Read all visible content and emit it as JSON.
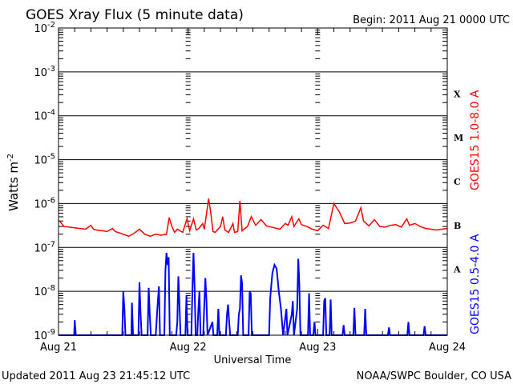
{
  "chart_data": {
    "type": "line",
    "title": "GOES Xray Flux (5 minute data)",
    "begin": "Begin:  2011 Aug 21 0000 UTC",
    "xlabel": "Universal Time",
    "ylabel": "Watts m",
    "ylabel_sup": "-2",
    "x_unit": "hours since 2011 Aug 21 0000 UTC",
    "xlim": [
      0,
      72
    ],
    "ylim": [
      1e-09,
      0.01
    ],
    "yscale": "log",
    "grid": true,
    "x_ticks": [
      {
        "value": 0,
        "label": "Aug 21"
      },
      {
        "value": 24,
        "label": "Aug 22"
      },
      {
        "value": 48,
        "label": "Aug 23"
      },
      {
        "value": 72,
        "label": "Aug 24"
      }
    ],
    "y_ticks": [
      {
        "exp": -2,
        "base": "10",
        "sup": "-2"
      },
      {
        "exp": -3,
        "base": "10",
        "sup": "-3"
      },
      {
        "exp": -4,
        "base": "10",
        "sup": "-4"
      },
      {
        "exp": -5,
        "base": "10",
        "sup": "-5"
      },
      {
        "exp": -6,
        "base": "10",
        "sup": "-6"
      },
      {
        "exp": -7,
        "base": "10",
        "sup": "-7"
      },
      {
        "exp": -8,
        "base": "10",
        "sup": "-8"
      },
      {
        "exp": -9,
        "base": "10",
        "sup": "-9"
      }
    ],
    "flare_classes": [
      {
        "label": "X",
        "exp": -3.5
      },
      {
        "label": "M",
        "exp": -4.5
      },
      {
        "label": "C",
        "exp": -5.5
      },
      {
        "label": "B",
        "exp": -6.5
      },
      {
        "label": "A",
        "exp": -7.5
      }
    ],
    "series": [
      {
        "name": "GOES15 1.0-8.0 A",
        "color": "#ff0000",
        "points": [
          [
            0,
            4.2e-07
          ],
          [
            0.5,
            3.6e-07
          ],
          [
            1,
            3e-07
          ],
          [
            2,
            2.9e-07
          ],
          [
            3,
            2.8e-07
          ],
          [
            4,
            2.7e-07
          ],
          [
            5,
            2.6e-07
          ],
          [
            6,
            3.2e-07
          ],
          [
            6.5,
            2.6e-07
          ],
          [
            7,
            2.5e-07
          ],
          [
            8,
            2.4e-07
          ],
          [
            9,
            2.3e-07
          ],
          [
            10,
            2.7e-07
          ],
          [
            10.5,
            2.3e-07
          ],
          [
            11,
            2.2e-07
          ],
          [
            12,
            2e-07
          ],
          [
            13,
            1.8e-07
          ],
          [
            14,
            2.1e-07
          ],
          [
            15,
            2.6e-07
          ],
          [
            16,
            2e-07
          ],
          [
            17,
            1.8e-07
          ],
          [
            18,
            2e-07
          ],
          [
            19,
            1.9e-07
          ],
          [
            20,
            2e-07
          ],
          [
            20.5,
            4.8e-07
          ],
          [
            21,
            3e-07
          ],
          [
            21.5,
            2.2e-07
          ],
          [
            22,
            2.6e-07
          ],
          [
            23,
            2.2e-07
          ],
          [
            23.8,
            4.5e-07
          ],
          [
            24.3,
            2.4e-07
          ],
          [
            25,
            4.5e-07
          ],
          [
            25.5,
            2.5e-07
          ],
          [
            26,
            2.7e-07
          ],
          [
            26.7,
            3.5e-07
          ],
          [
            27,
            2.6e-07
          ],
          [
            27.8,
            1.3e-06
          ],
          [
            28.2,
            6e-07
          ],
          [
            28.6,
            2.3e-07
          ],
          [
            29,
            2.2e-07
          ],
          [
            30,
            3e-07
          ],
          [
            30.4,
            5e-07
          ],
          [
            30.8,
            2.5e-07
          ],
          [
            31.5,
            2.2e-07
          ],
          [
            32.3,
            3.5e-07
          ],
          [
            32.6,
            2.2e-07
          ],
          [
            33.2,
            2.3e-07
          ],
          [
            33.6,
            1.15e-06
          ],
          [
            34,
            2.4e-07
          ],
          [
            35,
            3e-07
          ],
          [
            35.7,
            5e-07
          ],
          [
            36.5,
            3.2e-07
          ],
          [
            37.5,
            4.3e-07
          ],
          [
            38.5,
            3.1e-07
          ],
          [
            40,
            2.8e-07
          ],
          [
            41,
            2.6e-07
          ],
          [
            42,
            3.5e-07
          ],
          [
            42.5,
            3.2e-07
          ],
          [
            43.2,
            5e-07
          ],
          [
            43.6,
            3e-07
          ],
          [
            44.5,
            4.5e-07
          ],
          [
            45,
            3.3e-07
          ],
          [
            46,
            3e-07
          ],
          [
            47,
            2.6e-07
          ],
          [
            48,
            2.4e-07
          ],
          [
            49,
            3.2e-07
          ],
          [
            50,
            2.7e-07
          ],
          [
            51,
            1e-06
          ],
          [
            52,
            6.5e-07
          ],
          [
            53,
            3.5e-07
          ],
          [
            54,
            3.6e-07
          ],
          [
            55,
            4e-07
          ],
          [
            56,
            8e-07
          ],
          [
            56.5,
            4e-07
          ],
          [
            57.5,
            3.1e-07
          ],
          [
            58.5,
            4.3e-07
          ],
          [
            59.5,
            3e-07
          ],
          [
            60.5,
            2.9e-07
          ],
          [
            61.5,
            3.2e-07
          ],
          [
            62.5,
            3.3e-07
          ],
          [
            63.5,
            2.9e-07
          ],
          [
            64.5,
            4.5e-07
          ],
          [
            65,
            3.2e-07
          ],
          [
            66,
            3.5e-07
          ],
          [
            67,
            3e-07
          ],
          [
            68,
            2.7e-07
          ],
          [
            69,
            2.6e-07
          ],
          [
            70,
            2.5e-07
          ],
          [
            71,
            2.6e-07
          ],
          [
            72,
            2.7e-07
          ]
        ]
      },
      {
        "name": "GOES15 0.5-4.0 A",
        "color": "#0000ff",
        "points": [
          [
            0,
            1e-09
          ],
          [
            2.9,
            1e-09
          ],
          [
            3,
            2.2e-09
          ],
          [
            3.2,
            1e-09
          ],
          [
            11.8,
            1e-09
          ],
          [
            12,
            1e-08
          ],
          [
            12.2,
            4e-09
          ],
          [
            12.4,
            1e-09
          ],
          [
            13.5,
            1e-09
          ],
          [
            13.6,
            5.5e-09
          ],
          [
            13.8,
            1e-09
          ],
          [
            14.8,
            1e-09
          ],
          [
            15,
            1.6e-08
          ],
          [
            15.2,
            3e-09
          ],
          [
            15.4,
            1e-09
          ],
          [
            16.5,
            1e-09
          ],
          [
            16.7,
            1.2e-08
          ],
          [
            16.9,
            3e-09
          ],
          [
            17.1,
            1e-09
          ],
          [
            18,
            1e-09
          ],
          [
            18.3,
            4e-09
          ],
          [
            18.6,
            1.3e-08
          ],
          [
            18.8,
            1e-09
          ],
          [
            19.6,
            1e-09
          ],
          [
            19.8,
            3e-08
          ],
          [
            20,
            7.5e-08
          ],
          [
            20.2,
            4e-08
          ],
          [
            20.4,
            6e-08
          ],
          [
            20.6,
            1e-09
          ],
          [
            21.8,
            1e-09
          ],
          [
            22,
            2e-09
          ],
          [
            22.2,
            2.2e-08
          ],
          [
            22.4,
            5e-09
          ],
          [
            22.6,
            1e-09
          ],
          [
            23.5,
            1e-09
          ],
          [
            23.7,
            8e-09
          ],
          [
            23.9,
            1e-09
          ],
          [
            24.6,
            1e-09
          ],
          [
            24.8,
            1.2e-08
          ],
          [
            25,
            7.5e-08
          ],
          [
            25.2,
            1.2e-08
          ],
          [
            25.4,
            1e-09
          ],
          [
            25.7,
            1e-09
          ],
          [
            25.9,
            4e-09
          ],
          [
            26.1,
            1e-08
          ],
          [
            26.3,
            1e-09
          ],
          [
            26.8,
            1e-09
          ],
          [
            27,
            5e-09
          ],
          [
            27.2,
            2e-08
          ],
          [
            27.4,
            6e-09
          ],
          [
            27.6,
            1e-09
          ],
          [
            28.5,
            2e-09
          ],
          [
            28.7,
            1e-09
          ],
          [
            29.4,
            1e-09
          ],
          [
            29.6,
            4e-09
          ],
          [
            29.8,
            1e-09
          ],
          [
            31,
            1e-09
          ],
          [
            31.2,
            3e-09
          ],
          [
            31.4,
            5e-09
          ],
          [
            31.6,
            2e-09
          ],
          [
            31.8,
            1e-09
          ],
          [
            33.2,
            1e-09
          ],
          [
            33.4,
            3e-09
          ],
          [
            33.6,
            4e-09
          ],
          [
            33.8,
            2.3e-08
          ],
          [
            34,
            1.5e-08
          ],
          [
            34.2,
            1e-09
          ],
          [
            35.2,
            1e-09
          ],
          [
            35.4,
            1e-08
          ],
          [
            35.6,
            9e-09
          ],
          [
            35.8,
            1e-09
          ],
          [
            39,
            1e-09
          ],
          [
            39.2,
            7e-09
          ],
          [
            39.6,
            2.6e-08
          ],
          [
            40,
            4e-08
          ],
          [
            40.4,
            3.3e-08
          ],
          [
            40.8,
            1e-08
          ],
          [
            41.2,
            4e-09
          ],
          [
            41.6,
            1e-09
          ],
          [
            42.2,
            4e-09
          ],
          [
            42.4,
            1e-09
          ],
          [
            43.2,
            3e-09
          ],
          [
            43.4,
            6e-09
          ],
          [
            43.6,
            1e-09
          ],
          [
            44.2,
            4e-09
          ],
          [
            44.4,
            5.5e-08
          ],
          [
            44.6,
            1.5e-08
          ],
          [
            44.8,
            1e-09
          ],
          [
            46.2,
            1e-09
          ],
          [
            46.4,
            9e-09
          ],
          [
            46.6,
            1e-09
          ],
          [
            47.2,
            1e-09
          ],
          [
            47.4,
            2e-09
          ],
          [
            47.6,
            1e-09
          ],
          [
            49,
            1e-09
          ],
          [
            49.2,
            6e-09
          ],
          [
            49.4,
            7e-09
          ],
          [
            49.6,
            1e-09
          ],
          [
            50.2,
            1e-09
          ],
          [
            50.4,
            6.5e-09
          ],
          [
            50.6,
            1e-09
          ],
          [
            52.6,
            1e-09
          ],
          [
            52.8,
            1.7e-09
          ],
          [
            53,
            1e-09
          ],
          [
            54.6,
            1e-09
          ],
          [
            54.8,
            4.2e-09
          ],
          [
            55,
            1e-09
          ],
          [
            56.6,
            1e-09
          ],
          [
            56.8,
            4e-09
          ],
          [
            57,
            1e-09
          ],
          [
            61,
            1e-09
          ],
          [
            61.2,
            1.5e-09
          ],
          [
            61.4,
            1e-09
          ],
          [
            64.6,
            1e-09
          ],
          [
            64.8,
            2e-09
          ],
          [
            65,
            1e-09
          ],
          [
            67.6,
            1e-09
          ],
          [
            67.8,
            1.6e-09
          ],
          [
            68,
            1e-09
          ],
          [
            70,
            1e-09
          ],
          [
            72,
            1e-09
          ]
        ]
      }
    ]
  },
  "footer": {
    "updated": "Updated 2011 Aug 23 21:45:12 UTC",
    "source": "NOAA/SWPC Boulder, CO USA"
  }
}
